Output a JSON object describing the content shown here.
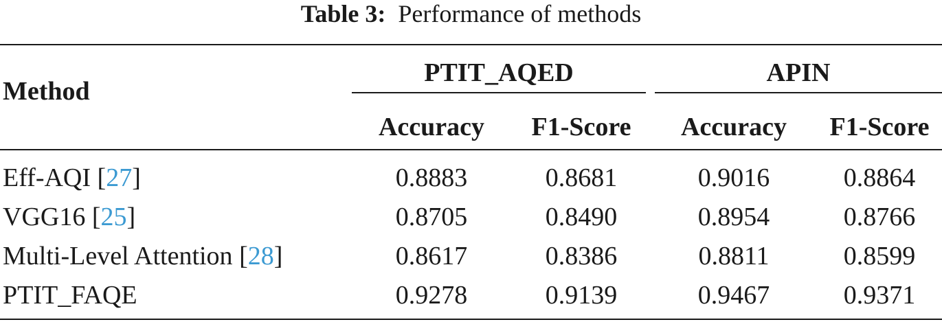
{
  "caption": {
    "label": "Table 3:",
    "text": "Performance of methods"
  },
  "header": {
    "method": "Method",
    "groups": [
      "PTIT_AQED",
      "APIN"
    ],
    "metrics": [
      "Accuracy",
      "F1-Score",
      "Accuracy",
      "F1-Score"
    ]
  },
  "rows": [
    {
      "name": "Eff-AQI",
      "ref": "27",
      "values": [
        "0.8883",
        "0.8681",
        "0.9016",
        "0.8864"
      ]
    },
    {
      "name": "VGG16",
      "ref": "25",
      "values": [
        "0.8705",
        "0.8490",
        "0.8954",
        "0.8766"
      ]
    },
    {
      "name": "Multi-Level Attention",
      "ref": "28",
      "values": [
        "0.8617",
        "0.8386",
        "0.8811",
        "0.8599"
      ]
    },
    {
      "name": "PTIT_FAQE",
      "ref": "",
      "values": [
        "0.9278",
        "0.9139",
        "0.9467",
        "0.9371"
      ]
    }
  ],
  "colors": {
    "text": "#1a1a1a",
    "citation": "#3c9ad2"
  }
}
